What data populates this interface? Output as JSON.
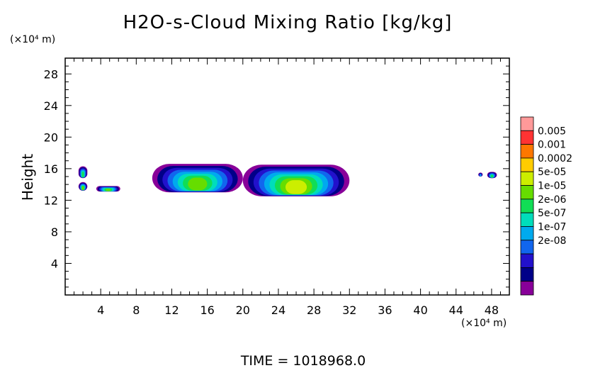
{
  "chart_data": {
    "type": "heatmap",
    "title": "H2O-s-Cloud Mixing Ratio [kg/kg]",
    "ylabel": "Height",
    "xlabel": "",
    "x_unit": "(×10⁴ m)",
    "y_unit": "(×10⁴ m)",
    "xlim": [
      0,
      50
    ],
    "ylim": [
      0,
      30
    ],
    "x_ticks": [
      4,
      8,
      12,
      16,
      20,
      24,
      28,
      32,
      36,
      40,
      44,
      48
    ],
    "y_ticks": [
      4,
      8,
      12,
      16,
      20,
      24,
      28
    ],
    "grid": false,
    "legend": {
      "placement": "right",
      "levels": [
        "0.005",
        "0.001",
        "0.0002",
        "5e-05",
        "1e-05",
        "2e-06",
        "5e-07",
        "1e-07",
        "2e-08"
      ],
      "colors": [
        "#ff9999",
        "#ff3333",
        "#ff7700",
        "#ffcc00",
        "#ccee00",
        "#66dd00",
        "#11dd55",
        "#00ddbb",
        "#00aaee",
        "#1166ee",
        "#2211cc",
        "#000088",
        "#880099"
      ]
    },
    "cloud_regions": [
      {
        "x_start": 1.5,
        "x_end": 2.5,
        "y_bottom": 14.8,
        "y_top": 16.3,
        "peak_level": "2e-06"
      },
      {
        "x_start": 1.5,
        "x_end": 2.5,
        "y_bottom": 13.2,
        "y_top": 14.3,
        "peak_level": "1e-05"
      },
      {
        "x_start": 3.5,
        "x_end": 6.2,
        "y_bottom": 13.1,
        "y_top": 13.8,
        "peak_level": "1e-05"
      },
      {
        "x_start": 9.8,
        "x_end": 20.0,
        "y_bottom": 13.0,
        "y_top": 16.6,
        "peak_level": "1e-05"
      },
      {
        "x_start": 20.0,
        "x_end": 32.0,
        "y_bottom": 12.5,
        "y_top": 16.5,
        "peak_level": "5e-05"
      },
      {
        "x_start": 46.5,
        "x_end": 47.0,
        "y_bottom": 15.0,
        "y_top": 15.5,
        "peak_level": "1e-07"
      },
      {
        "x_start": 47.5,
        "x_end": 48.6,
        "y_bottom": 14.8,
        "y_top": 15.6,
        "peak_level": "2e-06"
      }
    ]
  },
  "footer": {
    "time_label": "TIME = 1018968.0"
  }
}
